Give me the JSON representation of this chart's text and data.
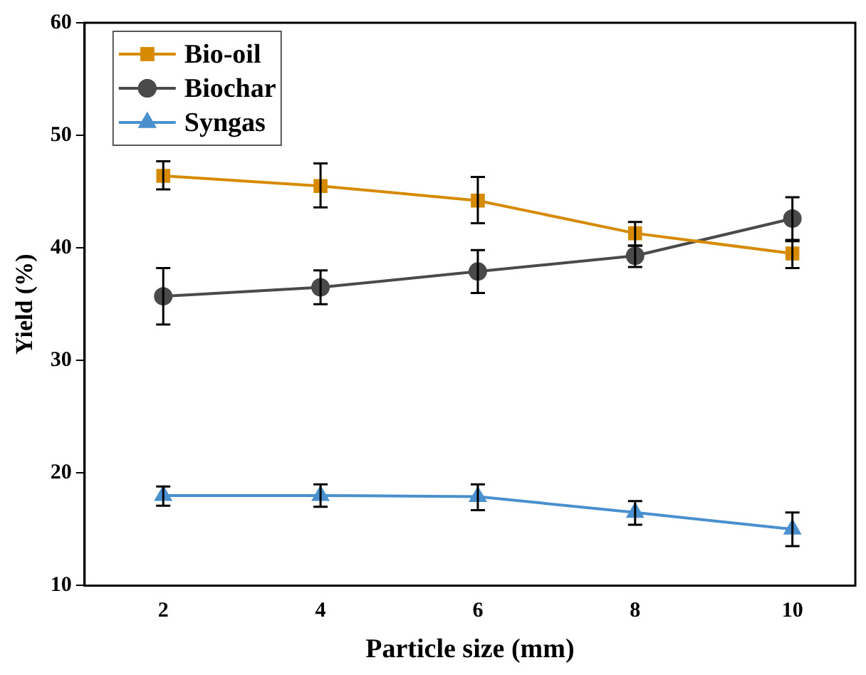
{
  "chart_data": {
    "type": "line",
    "xlabel": "Particle size (mm)",
    "ylabel": "Yield (%)",
    "x": [
      2,
      4,
      6,
      8,
      10
    ],
    "xlim": [
      1,
      10.8
    ],
    "xticks": [
      2,
      4,
      6,
      8,
      10
    ],
    "ylim": [
      10,
      60
    ],
    "yticks": [
      10,
      20,
      30,
      40,
      50,
      60
    ],
    "series": [
      {
        "name": "Bio-oil",
        "color": "#d68a00",
        "marker": "square",
        "values": [
          46.4,
          45.5,
          44.2,
          41.3,
          39.5
        ],
        "errors": [
          [
            45.2,
            47.7
          ],
          [
            43.6,
            47.5
          ],
          [
            42.2,
            46.3
          ],
          [
            40.2,
            42.3
          ],
          [
            38.2,
            40.7
          ]
        ]
      },
      {
        "name": "Biochar",
        "color": "#4a4a4a",
        "marker": "circle",
        "values": [
          35.7,
          36.5,
          37.9,
          39.3,
          42.6
        ],
        "errors": [
          [
            33.2,
            38.2
          ],
          [
            35.0,
            38.0
          ],
          [
            36.0,
            39.8
          ],
          [
            38.3,
            40.2
          ],
          [
            40.6,
            44.5
          ]
        ]
      },
      {
        "name": "Syngas",
        "color": "#4a90cf",
        "marker": "triangle",
        "values": [
          18.0,
          18.0,
          17.9,
          16.5,
          15.0
        ],
        "errors": [
          [
            17.1,
            18.8
          ],
          [
            17.0,
            19.0
          ],
          [
            16.7,
            19.0
          ],
          [
            15.4,
            17.5
          ],
          [
            13.5,
            16.5
          ]
        ]
      }
    ],
    "legend": "top left",
    "grid": false
  }
}
